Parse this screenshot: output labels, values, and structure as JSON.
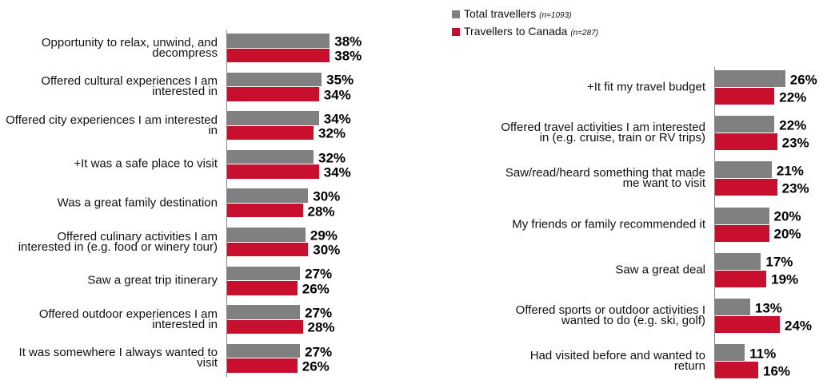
{
  "chart_data": [
    {
      "type": "bar",
      "orientation": "horizontal",
      "xlim": [
        0,
        40
      ],
      "categories": [
        "Opportunity to relax, unwind, and decompress",
        "Offered cultural experiences I am interested in",
        "Offered city experiences I am interested in",
        "+It was a safe place to visit",
        "Was a great family destination",
        "Offered culinary activities I am interested in (e.g. food or winery tour)",
        "Saw a great trip itinerary",
        "Offered outdoor experiences I am interested in",
        "It was somewhere I always wanted to visit"
      ],
      "series": [
        {
          "color": "#808080",
          "values": [
            38,
            35,
            34,
            32,
            30,
            29,
            27,
            27,
            27
          ],
          "value_labels": [
            "38%",
            "35%",
            "34%",
            "32%",
            "30%",
            "29%",
            "27%",
            "27%",
            "27%"
          ],
          "flag": [
            true,
            false,
            false,
            false,
            false,
            true,
            false,
            true,
            false
          ]
        },
        {
          "color": "#c8102e",
          "values": [
            38,
            34,
            32,
            34,
            28,
            30,
            26,
            28,
            26
          ],
          "value_labels": [
            "38%",
            "34%",
            "32%",
            "34%",
            "28%",
            "30%",
            "26%",
            "28%",
            "26%"
          ]
        }
      ]
    },
    {
      "type": "bar",
      "orientation": "horizontal",
      "xlim": [
        0,
        40
      ],
      "categories": [
        "+It fit my travel budget",
        "Offered travel activities I am interested in (e.g. cruise, train or RV trips)",
        "Saw/read/heard something that made me want to visit",
        "My friends or family recommended it",
        "Saw a great deal",
        "Offered sports or outdoor activities I wanted to do (e.g. ski, golf)",
        "Had visited before and wanted to return"
      ],
      "series": [
        {
          "name": "Total travellers",
          "note": "(n=1093)",
          "color": "#808080",
          "values": [
            26,
            22,
            21,
            20,
            17,
            13,
            11
          ],
          "value_labels": [
            "26%",
            "22%",
            "21%",
            "20%",
            "17%",
            "13%",
            "11%"
          ],
          "flag": [
            false,
            false,
            false,
            true,
            false,
            true,
            false
          ]
        },
        {
          "name": "Travellers to Canada",
          "note": "(n=287)",
          "color": "#c8102e",
          "values": [
            22,
            23,
            23,
            20,
            19,
            24,
            16
          ],
          "value_labels": [
            "22%",
            "23%",
            "23%",
            "20%",
            "19%",
            "24%",
            "16%"
          ]
        }
      ]
    }
  ]
}
